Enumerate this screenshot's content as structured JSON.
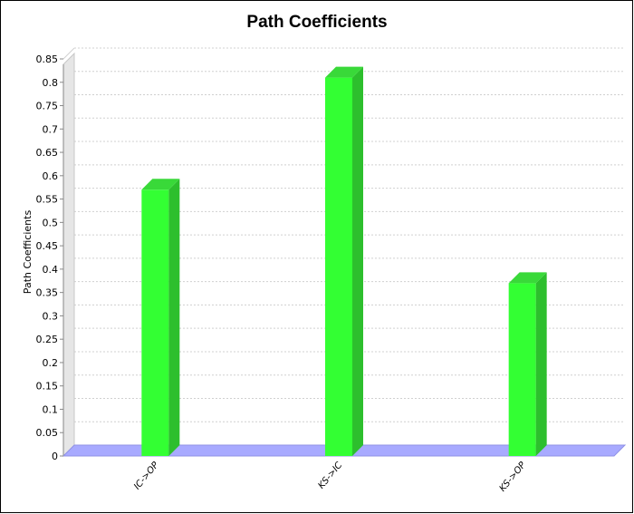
{
  "chart_data": {
    "type": "bar",
    "title": "Path Coefficients",
    "xlabel": "",
    "ylabel": "Path Coefficients",
    "categories": [
      "IC->OP",
      "KS->IC",
      "KS->OP"
    ],
    "values": [
      0.57,
      0.81,
      0.37
    ],
    "ylim": [
      0,
      0.85
    ],
    "yticks": [
      "0",
      "0.05",
      "0.1",
      "0.15",
      "0.2",
      "0.25",
      "0.3",
      "0.35",
      "0.4",
      "0.45",
      "0.5",
      "0.55",
      "0.6",
      "0.65",
      "0.7",
      "0.75",
      "0.8",
      "0.85"
    ],
    "grid": true,
    "legend": "none",
    "bar_color": "#33ff33",
    "bar_side_color": "#2dbf2d",
    "bar_top_color": "#39d939",
    "base_color": "#a8aaff"
  }
}
